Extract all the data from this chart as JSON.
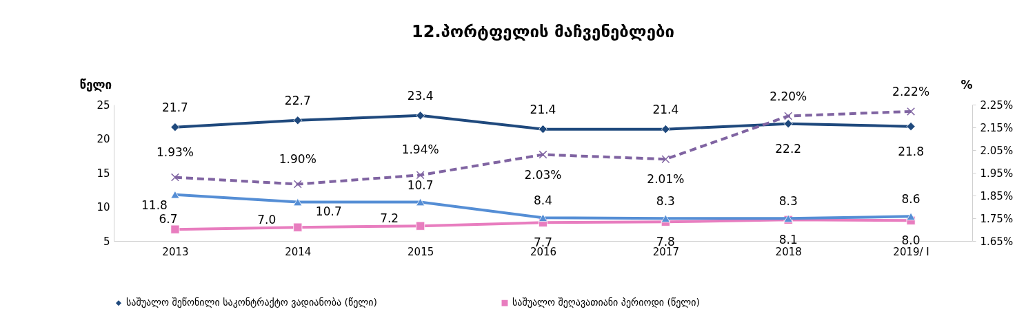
{
  "chart_data": {
    "type": "line",
    "title": "12.პორტფელის  მაჩვენებლები",
    "ylabel": "წელი",
    "y2label": "%",
    "categories": [
      "2013",
      "2014",
      "2015",
      "2016",
      "2017",
      "2018",
      "2019/ I"
    ],
    "series": [
      {
        "name": "საშუალო  შეწონილი საკონტრაქტო ვადიანობა (წელი)",
        "color": "#1f497d",
        "marker": "diamond",
        "line_style": "solid",
        "values": [
          21.7,
          22.7,
          23.4,
          21.4,
          21.4,
          22.2,
          21.8
        ],
        "value_labels": [
          "21.7",
          "22.7",
          "23.4",
          "21.4",
          "21.4",
          "22.2",
          "21.8"
        ]
      },
      {
        "name": "საშუალო შეღავათიანი პერიოდი (წელი)",
        "color": "#e87dbf",
        "marker": "square",
        "line_style": "solid",
        "values": [
          6.7,
          7.0,
          7.2,
          7.7,
          7.8,
          8.1,
          8.0
        ],
        "value_labels": [
          "6.7",
          "7.0",
          "7.2",
          "7.7",
          "7.8",
          "8.1",
          "8.0"
        ]
      },
      {
        "color": "#558ed5",
        "marker": "triangle",
        "line_style": "solid",
        "values": [
          11.8,
          10.7,
          10.7,
          8.4,
          8.3,
          8.3,
          8.6
        ],
        "value_labels": [
          "11.8",
          "10.7",
          "10.7",
          "8.4",
          "8.3",
          "8.3",
          "8.6"
        ]
      },
      {
        "color": "#8064a2",
        "marker": "cross",
        "line_style": "dashed",
        "axis": "y2",
        "values": [
          1.93,
          1.9,
          1.94,
          2.03,
          2.01,
          2.2,
          2.22
        ],
        "value_labels": [
          "1.93%",
          "1.90%",
          "1.94%",
          "2.03%",
          "2.01%",
          "2.20%",
          "2.22%"
        ]
      }
    ],
    "ylim": [
      5,
      25
    ],
    "yticks": [
      5,
      10,
      15,
      20,
      25
    ],
    "y2lim": [
      1.65,
      2.25
    ],
    "y2ticks": [
      {
        "value": 1.65,
        "label": "1.65%"
      },
      {
        "value": 1.75,
        "label": "1.75%"
      },
      {
        "value": 1.85,
        "label": "1.85%"
      },
      {
        "value": 1.95,
        "label": "1.95%"
      },
      {
        "value": 2.05,
        "label": "2.05%"
      },
      {
        "value": 2.15,
        "label": "2.15%"
      },
      {
        "value": 2.25,
        "label": "2.25%"
      }
    ],
    "grid": false,
    "legend": "bottom"
  }
}
